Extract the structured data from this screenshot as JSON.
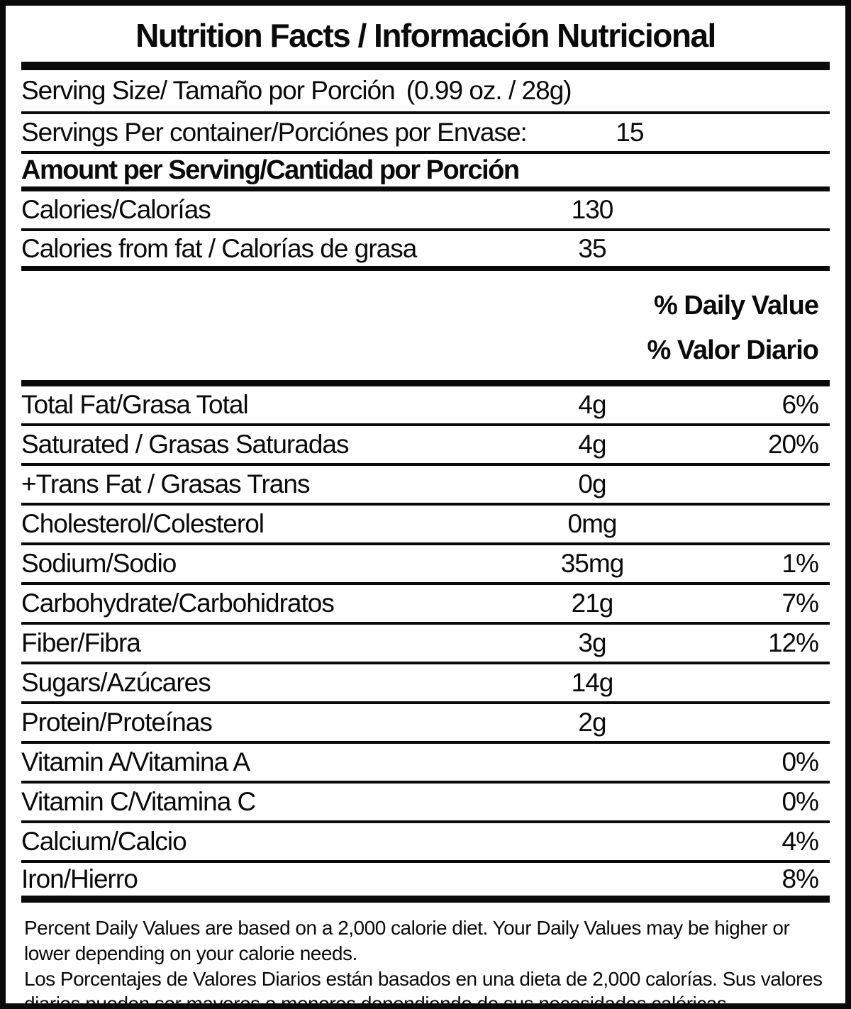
{
  "label": {
    "title": "Nutrition Facts / Información Nutricional",
    "serving_size": {
      "label": "Serving Size/ Tamaño por Porción",
      "value": "(0.99 oz. / 28g)"
    },
    "servings_per_container": {
      "label": "Servings Per container/Porciónes por Envase:",
      "value": "15"
    },
    "amount_per_serving": "Amount per Serving/Cantidad por Porción",
    "calories": {
      "label": "Calories/Calorías",
      "value": "130"
    },
    "calories_from_fat": {
      "label": "Calories from fat / Calorías de grasa",
      "value": "35"
    },
    "daily_value_header_en": "% Daily Value",
    "daily_value_header_es": "% Valor Diario",
    "nutrients": [
      {
        "label": "Total Fat/Grasa Total",
        "amount": "4g",
        "dv": "6%"
      },
      {
        "label": "Saturated / Grasas Saturadas",
        "amount": "4g",
        "dv": "20%"
      },
      {
        "label": "+Trans Fat / Grasas Trans",
        "amount": "0g",
        "dv": ""
      },
      {
        "label": "Cholesterol/Colesterol",
        "amount": "0mg",
        "dv": ""
      },
      {
        "label": "Sodium/Sodio",
        "amount": "35mg",
        "dv": "1%"
      },
      {
        "label": "Carbohydrate/Carbohidratos",
        "amount": "21g",
        "dv": "7%"
      },
      {
        "label": "Fiber/Fibra",
        "amount": "3g",
        "dv": "12%"
      },
      {
        "label": "Sugars/Azúcares",
        "amount": "14g",
        "dv": ""
      },
      {
        "label": "Protein/Proteínas",
        "amount": "2g",
        "dv": ""
      }
    ],
    "micronutrients": [
      {
        "label": "Vitamin A/Vitamina A",
        "dv": "0%"
      },
      {
        "label": "Vitamin C/Vitamina C",
        "dv": "0%"
      },
      {
        "label": "Calcium/Calcio",
        "dv": "4%"
      },
      {
        "label": "Iron/Hierro",
        "dv": "8%"
      }
    ],
    "footnote_en": "Percent Daily Values are based on a 2,000 calorie diet. Your Daily Values may be higher or lower depending on your calorie needs.",
    "footnote_es": "Los Porcentajes de Valores Diarios están basados en una dieta de 2,000 calorías. Sus valores diarios pueden ser mayores o menores dependiendo de sus necesidades calóricas"
  },
  "colors": {
    "text": "#0a0a0a",
    "background": "#ffffff",
    "rule": "#0a0a0a"
  }
}
